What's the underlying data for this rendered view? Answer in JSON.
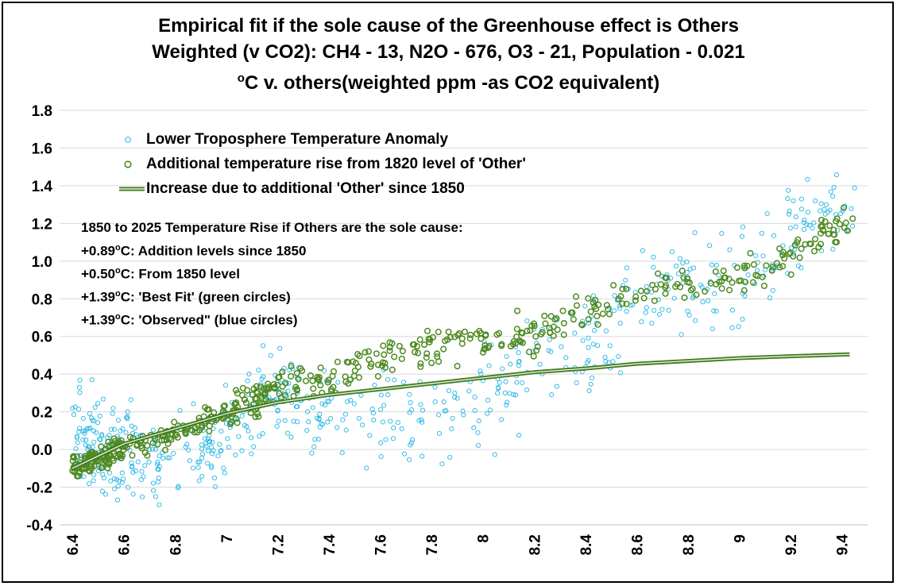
{
  "chart_data": {
    "type": "scatter",
    "title": [
      "Empirical fit if the sole cause of the Greenhouse effect is Others",
      "Weighted (v CO2): CH4 - 13, N2O - 676, O3 - 21, Population - 0.021"
    ],
    "subtitle": {
      "prefix": "o",
      "text": "C v. others(weighted ppm -as CO2 equivalent)"
    },
    "xlim": [
      6.35,
      9.5
    ],
    "ylim": [
      -0.4,
      1.8
    ],
    "xticks": [
      "6.4",
      "6.6",
      "6.8",
      "7",
      "7.2",
      "7.4",
      "7.6",
      "7.8",
      "8",
      "8.2",
      "8.4",
      "8.6",
      "8.8",
      "9",
      "9.2",
      "9.4"
    ],
    "yticks": [
      "-0.4",
      "-0.2",
      "0.0",
      "0.2",
      "0.4",
      "0.6",
      "0.8",
      "1.0",
      "1.2",
      "1.4",
      "1.6",
      "1.8"
    ],
    "grid": "horizontal",
    "legend_placement": "top-left",
    "series": [
      {
        "name": "Lower Troposphere Temperature Anomaly",
        "marker": "circle-small",
        "color": "#22B5E6",
        "trend": [
          [
            6.4,
            0.05
          ],
          [
            6.6,
            0.0
          ],
          [
            6.8,
            -0.05
          ],
          [
            7.0,
            0.08
          ],
          [
            7.2,
            0.3
          ],
          [
            7.4,
            0.15
          ],
          [
            7.6,
            0.15
          ],
          [
            7.8,
            0.15
          ],
          [
            8.0,
            0.3
          ],
          [
            8.2,
            0.45
          ],
          [
            8.4,
            0.55
          ],
          [
            8.6,
            0.8
          ],
          [
            8.8,
            0.85
          ],
          [
            9.0,
            0.9
          ],
          [
            9.2,
            1.1
          ],
          [
            9.4,
            1.3
          ]
        ],
        "spread": 0.18
      },
      {
        "name": "Additional temperature rise from 1820 level of 'Other'",
        "marker": "circle",
        "color": "#4E8A21",
        "trend": [
          [
            6.4,
            -0.1
          ],
          [
            6.6,
            0.0
          ],
          [
            6.8,
            0.08
          ],
          [
            7.0,
            0.2
          ],
          [
            7.2,
            0.33
          ],
          [
            7.4,
            0.38
          ],
          [
            7.6,
            0.47
          ],
          [
            7.8,
            0.55
          ],
          [
            8.0,
            0.57
          ],
          [
            8.2,
            0.62
          ],
          [
            8.4,
            0.72
          ],
          [
            8.6,
            0.85
          ],
          [
            8.8,
            0.88
          ],
          [
            9.0,
            0.92
          ],
          [
            9.2,
            1.02
          ],
          [
            9.4,
            1.2
          ]
        ],
        "spread": 0.05
      },
      {
        "name": "Increase due to additional 'Other' since 1850",
        "marker": "line",
        "color": "#3F7A1C",
        "x": [
          6.4,
          6.6,
          6.8,
          7.0,
          7.2,
          7.4,
          7.6,
          7.8,
          8.0,
          8.2,
          8.4,
          8.6,
          8.8,
          9.0,
          9.2,
          9.43
        ],
        "y": [
          -0.1,
          0.03,
          0.11,
          0.19,
          0.25,
          0.29,
          0.32,
          0.35,
          0.38,
          0.41,
          0.43,
          0.455,
          0.47,
          0.485,
          0.495,
          0.505
        ]
      }
    ],
    "annotations": [
      {
        "text": "1850 to 2025 Temperature Rise if Others are the sole cause:"
      },
      {
        "text_before": "+0.89",
        "sup": "o",
        "text_after": "C: Addition levels since 1850"
      },
      {
        "text_before": "+0.50",
        "sup": "o",
        "text_after": "C: From 1850 level"
      },
      {
        "text_before": "+1.39",
        "sup": "o",
        "text_after": "C: 'Best Fit' (green circles)"
      },
      {
        "text_before": "+1.39",
        "sup": "o",
        "text_after": "C: 'Observed\" (blue circles)"
      }
    ]
  }
}
